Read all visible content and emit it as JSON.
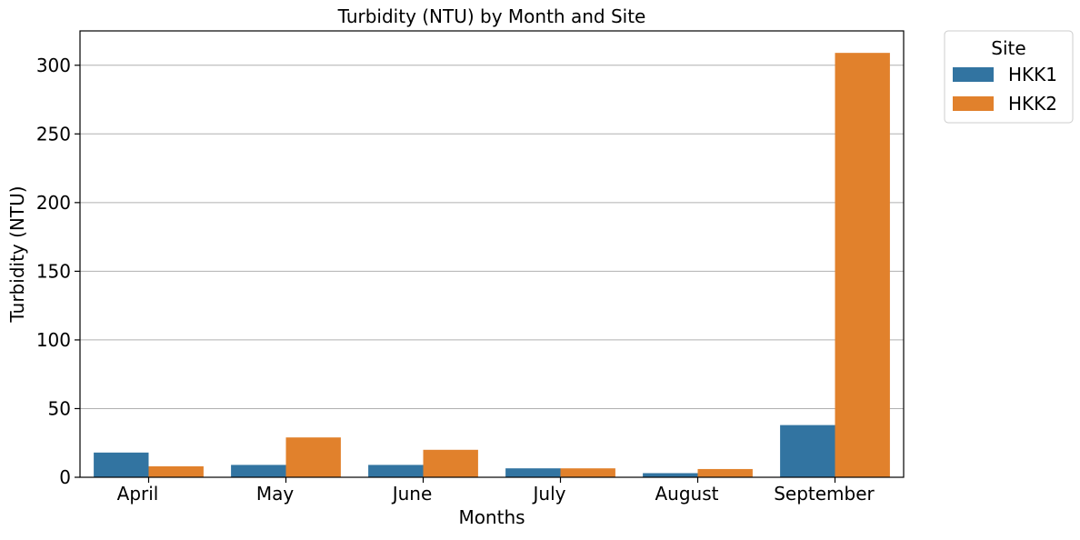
{
  "chart_data": {
    "type": "bar",
    "title": "Turbidity (NTU) by Month and Site",
    "xlabel": "Months",
    "ylabel": "Turbidity (NTU)",
    "categories": [
      "April",
      "May",
      "June",
      "July",
      "August",
      "September"
    ],
    "series": [
      {
        "name": "HKK1",
        "color": "#3274a1",
        "values": [
          18,
          9,
          9,
          6.5,
          3,
          38
        ]
      },
      {
        "name": "HKK2",
        "color": "#e1812c",
        "values": [
          8,
          29,
          20,
          6.5,
          6,
          309
        ]
      }
    ],
    "ylim": [
      0,
      325
    ],
    "yticks": [
      0,
      50,
      100,
      150,
      200,
      250,
      300
    ],
    "grid": "y",
    "legend": {
      "title": "Site",
      "placement": "outside-top-right"
    }
  }
}
